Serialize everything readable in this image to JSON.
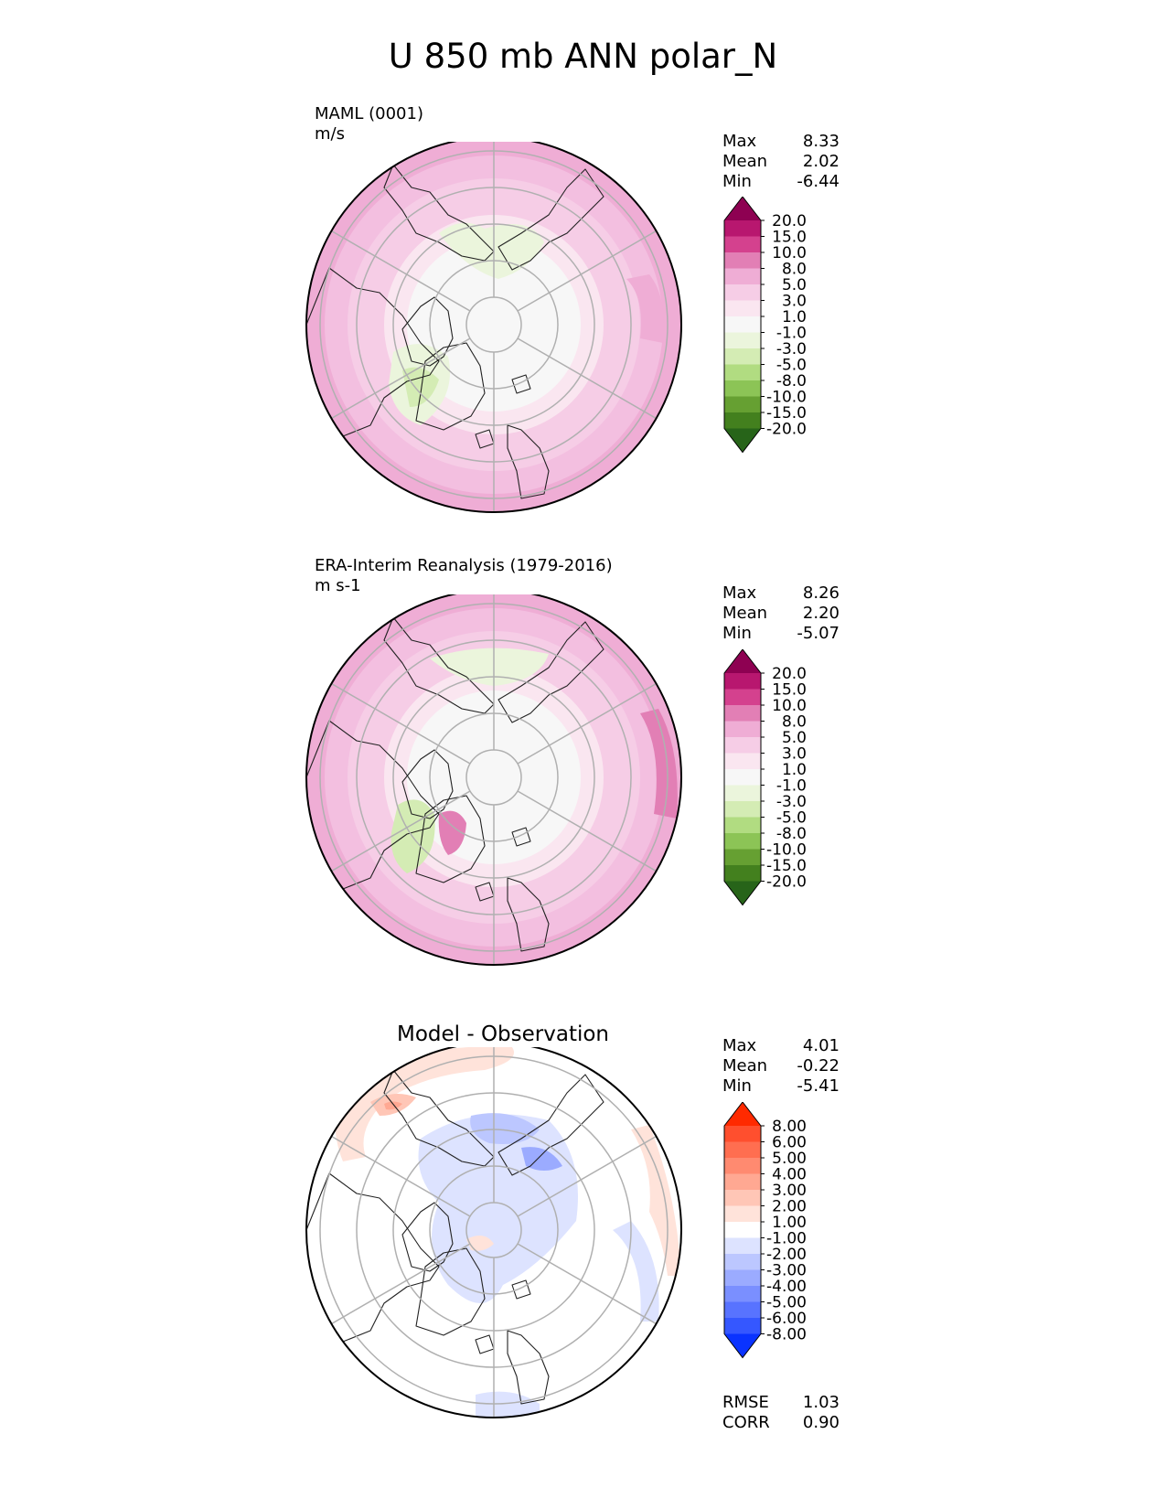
{
  "title": "U 850 mb ANN polar_N",
  "chart_data": [
    {
      "type": "heatmap",
      "projection": "north-polar-stereographic",
      "title": "MAML (0001)",
      "units": "m/s",
      "stats": [
        {
          "label": "Max",
          "value": "8.33"
        },
        {
          "label": "Mean",
          "value": "2.02"
        },
        {
          "label": "Min",
          "value": "-6.44"
        }
      ],
      "colorbar": {
        "levels": [
          "20.0",
          "15.0",
          "10.0",
          "8.0",
          "5.0",
          "3.0",
          "1.0",
          "-1.0",
          "-3.0",
          "-5.0",
          "-8.0",
          "-10.0",
          "-15.0",
          "-20.0"
        ],
        "colors": [
          "#8e0152",
          "#b8176f",
          "#d4418e",
          "#e27fb5",
          "#efadd5",
          "#f6cde6",
          "#fae6f0",
          "#f7f7f7",
          "#ebf5dc",
          "#d4ecb4",
          "#b1dc81",
          "#8cc456",
          "#66a032",
          "#43801e",
          "#276419"
        ],
        "extend": "both"
      }
    },
    {
      "type": "heatmap",
      "projection": "north-polar-stereographic",
      "title": "ERA-Interim Reanalysis (1979-2016)",
      "units": "m s-1",
      "stats": [
        {
          "label": "Max",
          "value": "8.26"
        },
        {
          "label": "Mean",
          "value": "2.20"
        },
        {
          "label": "Min",
          "value": "-5.07"
        }
      ],
      "colorbar": {
        "levels": [
          "20.0",
          "15.0",
          "10.0",
          "8.0",
          "5.0",
          "3.0",
          "1.0",
          "-1.0",
          "-3.0",
          "-5.0",
          "-8.0",
          "-10.0",
          "-15.0",
          "-20.0"
        ],
        "colors": [
          "#8e0152",
          "#b8176f",
          "#d4418e",
          "#e27fb5",
          "#efadd5",
          "#f6cde6",
          "#fae6f0",
          "#f7f7f7",
          "#ebf5dc",
          "#d4ecb4",
          "#b1dc81",
          "#8cc456",
          "#66a032",
          "#43801e",
          "#276419"
        ],
        "extend": "both"
      }
    },
    {
      "type": "heatmap",
      "projection": "north-polar-stereographic",
      "title": "Model - Observation",
      "stats": [
        {
          "label": "Max",
          "value": "4.01"
        },
        {
          "label": "Mean",
          "value": "-0.22"
        },
        {
          "label": "Min",
          "value": "-5.41"
        }
      ],
      "extra_stats": [
        {
          "label": "RMSE",
          "value": "1.03"
        },
        {
          "label": "CORR",
          "value": "0.90"
        }
      ],
      "colorbar": {
        "levels": [
          "8.00",
          "6.00",
          "5.00",
          "4.00",
          "3.00",
          "2.00",
          "1.00",
          "-1.00",
          "-2.00",
          "-3.00",
          "-4.00",
          "-5.00",
          "-6.00",
          "-8.00"
        ],
        "colors": [
          "#ff2a00",
          "#ff4f2e",
          "#ff6e50",
          "#ff8a70",
          "#ffa892",
          "#ffc6b6",
          "#ffe3da",
          "#ffffff",
          "#dde3ff",
          "#bcc7ff",
          "#9babff",
          "#7a8fff",
          "#5873ff",
          "#3557ff",
          "#0a33ff"
        ],
        "extend": "both"
      }
    }
  ]
}
